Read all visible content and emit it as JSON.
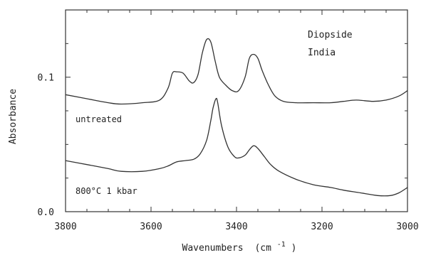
{
  "chart_data": {
    "type": "line",
    "title": "",
    "xlabel": "Wavenumbers",
    "xlabel_unit_base": "(cm",
    "xlabel_unit_exp": "-1",
    "xlabel_unit_close": ")",
    "ylabel": "Absorbance",
    "xlim": [
      3800,
      3000
    ],
    "ylim": [
      0.0,
      0.15
    ],
    "x_reversed": true,
    "x_ticks": [
      3800,
      3600,
      3400,
      3200,
      3000
    ],
    "x_tick_labels": [
      "3800",
      "3600",
      "3400",
      "3200",
      "3000"
    ],
    "y_ticks": [
      0.0,
      0.1
    ],
    "y_tick_labels": [
      "0.0",
      "0.1"
    ],
    "annotations": [
      "Diopside",
      "India"
    ],
    "series": [
      {
        "label": "untreated",
        "points": [
          [
            3800,
            0.087
          ],
          [
            3750,
            0.084
          ],
          [
            3700,
            0.081
          ],
          [
            3670,
            0.08
          ],
          [
            3620,
            0.081
          ],
          [
            3580,
            0.083
          ],
          [
            3560,
            0.092
          ],
          [
            3550,
            0.103
          ],
          [
            3540,
            0.104
          ],
          [
            3525,
            0.103
          ],
          [
            3510,
            0.097
          ],
          [
            3500,
            0.096
          ],
          [
            3490,
            0.102
          ],
          [
            3480,
            0.118
          ],
          [
            3470,
            0.128
          ],
          [
            3460,
            0.126
          ],
          [
            3450,
            0.112
          ],
          [
            3440,
            0.1
          ],
          [
            3425,
            0.094
          ],
          [
            3410,
            0.09
          ],
          [
            3395,
            0.09
          ],
          [
            3380,
            0.1
          ],
          [
            3370,
            0.114
          ],
          [
            3360,
            0.117
          ],
          [
            3350,
            0.114
          ],
          [
            3340,
            0.105
          ],
          [
            3325,
            0.094
          ],
          [
            3310,
            0.086
          ],
          [
            3290,
            0.082
          ],
          [
            3260,
            0.081
          ],
          [
            3220,
            0.081
          ],
          [
            3180,
            0.081
          ],
          [
            3150,
            0.082
          ],
          [
            3120,
            0.083
          ],
          [
            3080,
            0.082
          ],
          [
            3050,
            0.083
          ],
          [
            3020,
            0.086
          ],
          [
            3000,
            0.09
          ]
        ]
      },
      {
        "label": "800°C 1 kbar",
        "points": [
          [
            3800,
            0.038
          ],
          [
            3750,
            0.035
          ],
          [
            3700,
            0.032
          ],
          [
            3670,
            0.03
          ],
          [
            3620,
            0.03
          ],
          [
            3580,
            0.032
          ],
          [
            3560,
            0.034
          ],
          [
            3540,
            0.037
          ],
          [
            3520,
            0.038
          ],
          [
            3500,
            0.039
          ],
          [
            3485,
            0.043
          ],
          [
            3470,
            0.053
          ],
          [
            3460,
            0.068
          ],
          [
            3455,
            0.077
          ],
          [
            3448,
            0.084
          ],
          [
            3444,
            0.081
          ],
          [
            3435,
            0.064
          ],
          [
            3420,
            0.048
          ],
          [
            3405,
            0.041
          ],
          [
            3395,
            0.04
          ],
          [
            3380,
            0.042
          ],
          [
            3370,
            0.046
          ],
          [
            3360,
            0.049
          ],
          [
            3350,
            0.047
          ],
          [
            3335,
            0.041
          ],
          [
            3320,
            0.035
          ],
          [
            3300,
            0.03
          ],
          [
            3260,
            0.024
          ],
          [
            3220,
            0.02
          ],
          [
            3180,
            0.018
          ],
          [
            3150,
            0.016
          ],
          [
            3110,
            0.014
          ],
          [
            3070,
            0.012
          ],
          [
            3040,
            0.012
          ],
          [
            3020,
            0.014
          ],
          [
            3000,
            0.018
          ]
        ]
      }
    ]
  }
}
